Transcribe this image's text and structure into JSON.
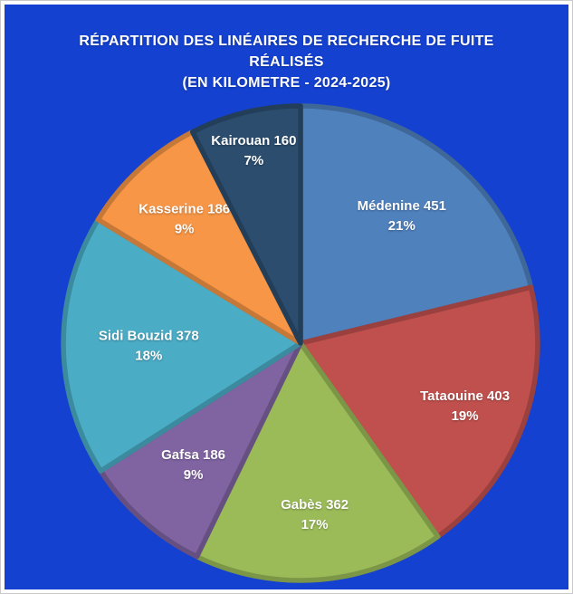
{
  "page": {
    "background_color": "#1441d0",
    "frame_border_color": "#ffffff",
    "outer_edge_color": "#c9c9c9",
    "title_color": "#ffffff",
    "label_color": "#ffffff"
  },
  "chart_data": {
    "type": "pie",
    "title_lines": [
      "RÉPARTITION DES LINÉAIRES DE RECHERCHE DE FUITE",
      "RÉALISÉS",
      "(EN KILOMETRE - 2024-2025)"
    ],
    "legend": "none",
    "data_labels": "category name + value inside slice, percent on second line",
    "start_angle_deg": 0,
    "direction": "clockwise",
    "slices": [
      {
        "label": "Médenine",
        "value": 451,
        "percent": "21%",
        "color": "#4f81bd",
        "label_r": 0.69
      },
      {
        "label": "Tataouine",
        "value": 403,
        "percent": "19%",
        "color": "#c0504d",
        "label_r": 0.74
      },
      {
        "label": "Gabès",
        "value": 362,
        "percent": "17%",
        "color": "#9bbb59",
        "label_r": 0.72
      },
      {
        "label": "Gafsa",
        "value": 186,
        "percent": "9%",
        "color": "#8064a2",
        "label_r": 0.68
      },
      {
        "label": "Sidi Bouzid",
        "value": 378,
        "percent": "18%",
        "color": "#4bacc6",
        "label_r": 0.64
      },
      {
        "label": "Kasserine",
        "value": 186,
        "percent": "9%",
        "color": "#f79646",
        "label_r": 0.72
      },
      {
        "label": "Kairouan",
        "value": 160,
        "percent": "7%",
        "color": "#2c4d6e",
        "label_r": 0.84
      }
    ]
  }
}
